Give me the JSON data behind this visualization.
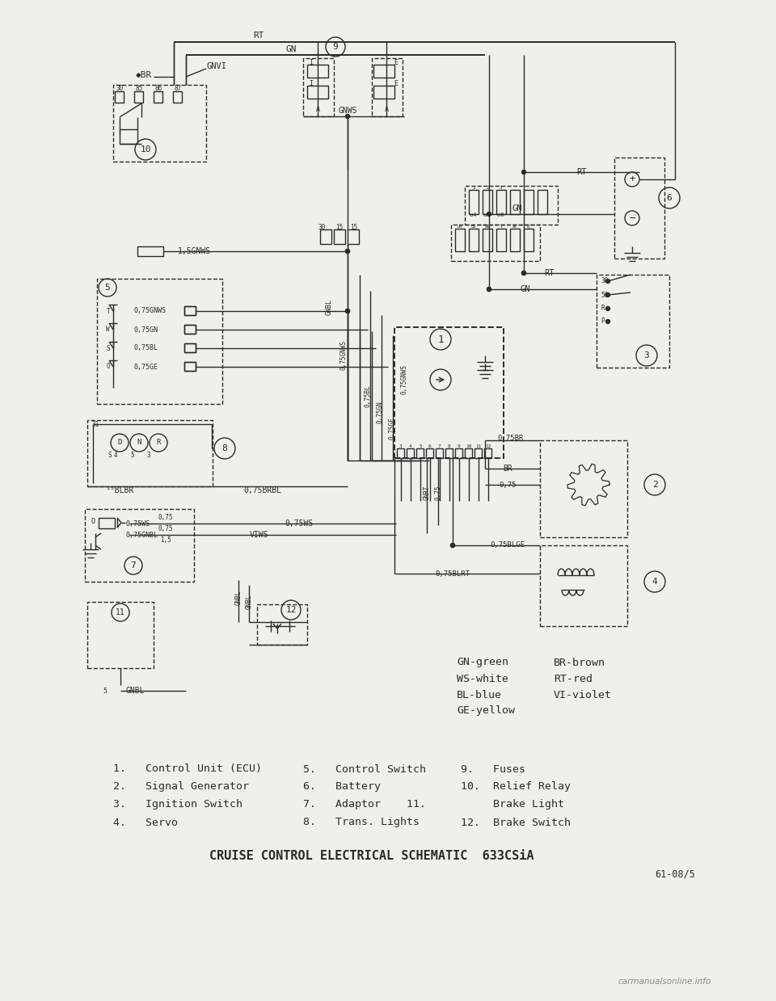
{
  "bg_color": "#f2efea",
  "line_color": "#2a2a2a",
  "title": "CRUISE CONTROL ELECTRICAL SCHEMATIC  633CSiA",
  "page_ref": "61-08/5",
  "watermark": "carmanualsonline.info",
  "legend_col1": [
    "GN-green",
    "WS-white",
    "BL-blue",
    "GE-yellow"
  ],
  "legend_col2": [
    "BR-brown",
    "RT-red",
    "VI-violet",
    ""
  ],
  "parts_col1": [
    "1.   Control Unit (ECU)",
    "2.   Signal Generator",
    "3.   Ignition Switch",
    "4.   Servo"
  ],
  "parts_col2": [
    "5.   Control Switch",
    "6.   Battery",
    "7.   Adaptor",
    "8.   Trans. Lights"
  ],
  "parts_col3": [
    "9.    Fuses",
    "10.  Relief Relay",
    "      Brake Light",
    "12.  Brake Switch"
  ],
  "parts_num3": [
    "",
    "11.",
    "",
    ""
  ]
}
